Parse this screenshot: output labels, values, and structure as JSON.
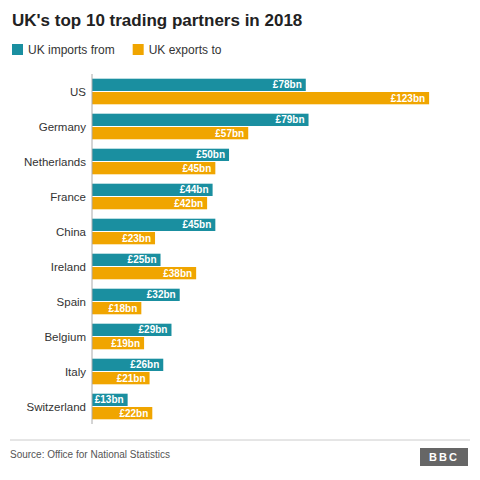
{
  "chart_data": {
    "type": "bar",
    "orientation": "horizontal",
    "title": "UK's top 10 trading partners in 2018",
    "annotations": [
      "Source: Office for National Statistics",
      "BBC"
    ],
    "categories": [
      "US",
      "Germany",
      "Netherlands",
      "France",
      "China",
      "Ireland",
      "Spain",
      "Belgium",
      "Italy",
      "Switzerland"
    ],
    "series": [
      {
        "name": "UK imports from",
        "color": "#1a8fa0",
        "values": [
          78,
          79,
          50,
          44,
          45,
          25,
          32,
          29,
          26,
          13
        ],
        "value_labels": [
          "£78bn",
          "£79bn",
          "£50bn",
          "£44bn",
          "£45bn",
          "£25bn",
          "£32bn",
          "£29bn",
          "£26bn",
          "£13bn"
        ]
      },
      {
        "name": "UK exports to",
        "color": "#f0a500",
        "values": [
          123,
          57,
          45,
          42,
          23,
          38,
          18,
          19,
          21,
          22
        ],
        "value_labels": [
          "£123bn",
          "£57bn",
          "£45bn",
          "£42bn",
          "£23bn",
          "£38bn",
          "£18bn",
          "£19bn",
          "£21bn",
          "£22bn"
        ]
      }
    ],
    "xlim": [
      0,
      135
    ],
    "data_labels": true,
    "tick_labels": "y",
    "legend": "upper left",
    "grid": false
  }
}
